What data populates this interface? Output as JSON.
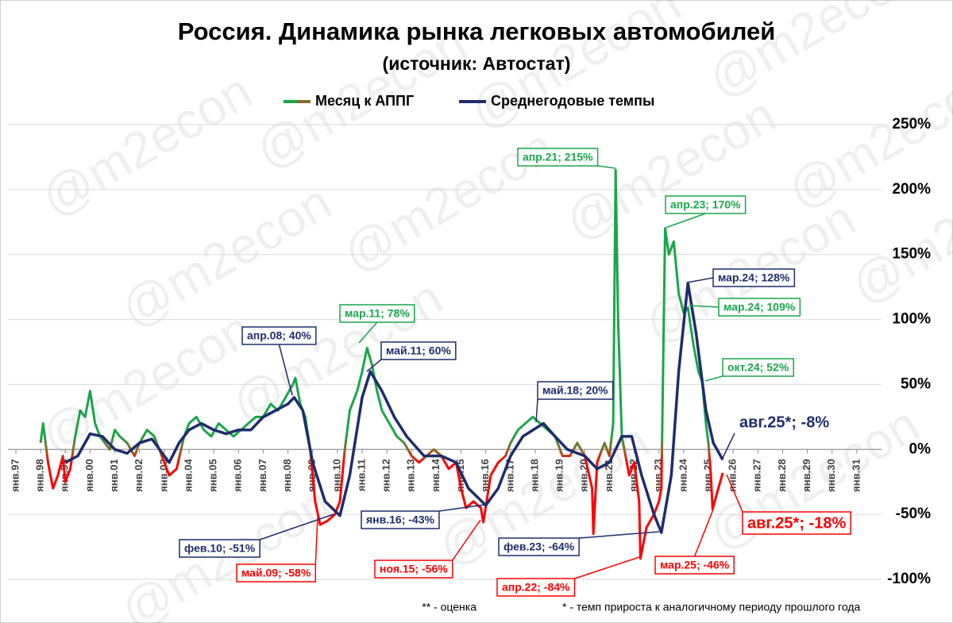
{
  "chart_data": {
    "type": "line",
    "title": "Россия. Динамика рынка легковых автомобилей",
    "subtitle": "(источник: Автостат)",
    "watermark": "@m2econ",
    "xlim": [
      1997,
      2032
    ],
    "xticks": [
      {
        "value": 1997,
        "label": "янв.97"
      },
      {
        "value": 1998,
        "label": "янв.98"
      },
      {
        "value": 1999,
        "label": "янв.99"
      },
      {
        "value": 2000,
        "label": "янв.00"
      },
      {
        "value": 2001,
        "label": "янв.01"
      },
      {
        "value": 2002,
        "label": "янв.02"
      },
      {
        "value": 2003,
        "label": "янв.03"
      },
      {
        "value": 2004,
        "label": "янв.04"
      },
      {
        "value": 2005,
        "label": "янв.05"
      },
      {
        "value": 2006,
        "label": "янв.06"
      },
      {
        "value": 2007,
        "label": "янв.07"
      },
      {
        "value": 2008,
        "label": "янв.08"
      },
      {
        "value": 2009,
        "label": "янв.09"
      },
      {
        "value": 2010,
        "label": "янв.10"
      },
      {
        "value": 2011,
        "label": "янв.11"
      },
      {
        "value": 2012,
        "label": "янв.12"
      },
      {
        "value": 2013,
        "label": "янв.13"
      },
      {
        "value": 2014,
        "label": "янв.14"
      },
      {
        "value": 2015,
        "label": "янв.15"
      },
      {
        "value": 2016,
        "label": "янв.16"
      },
      {
        "value": 2017,
        "label": "янв.17"
      },
      {
        "value": 2018,
        "label": "янв.18"
      },
      {
        "value": 2019,
        "label": "янв.19"
      },
      {
        "value": 2020,
        "label": "янв.20"
      },
      {
        "value": 2021,
        "label": "янв.21"
      },
      {
        "value": 2022,
        "label": "янв.22"
      },
      {
        "value": 2023,
        "label": "янв.23"
      },
      {
        "value": 2024,
        "label": "янв.24"
      },
      {
        "value": 2025,
        "label": "янв.25"
      },
      {
        "value": 2026,
        "label": "янв.26"
      },
      {
        "value": 2027,
        "label": "янв.27"
      },
      {
        "value": 2028,
        "label": "янв.28"
      },
      {
        "value": 2029,
        "label": "янв.29"
      },
      {
        "value": 2030,
        "label": "янв.30"
      },
      {
        "value": 2031,
        "label": "янв.31"
      }
    ],
    "ylim": [
      -100,
      250
    ],
    "yticks": [
      {
        "value": 250,
        "label": "250%"
      },
      {
        "value": 200,
        "label": "200%"
      },
      {
        "value": 150,
        "label": "150%"
      },
      {
        "value": 100,
        "label": "100%"
      },
      {
        "value": 50,
        "label": "50%"
      },
      {
        "value": 0,
        "label": "0%"
      },
      {
        "value": -50,
        "label": "-50%"
      },
      {
        "value": -100,
        "label": "-100%"
      }
    ],
    "grid": true,
    "legend": "top",
    "series": [
      {
        "name": "Месяц к АППГ",
        "color": "#1aa64a",
        "negative_color": "#ff0000",
        "x": [
          1998.0,
          1998.1,
          1998.3,
          1998.5,
          1998.7,
          1998.9,
          1999.0,
          1999.2,
          1999.4,
          1999.6,
          1999.8,
          2000.0,
          2000.2,
          2000.4,
          2000.6,
          2000.8,
          2001.0,
          2001.2,
          2001.5,
          2001.8,
          2002.0,
          2002.3,
          2002.6,
          2002.9,
          2003.2,
          2003.5,
          2003.8,
          2004.0,
          2004.3,
          2004.6,
          2004.9,
          2005.2,
          2005.5,
          2005.8,
          2006.1,
          2006.4,
          2006.7,
          2007.0,
          2007.3,
          2007.6,
          2007.9,
          2008.2,
          2008.3,
          2008.5,
          2008.7,
          2008.9,
          2009.1,
          2009.3,
          2009.6,
          2009.9,
          2010.1,
          2010.3,
          2010.5,
          2010.8,
          2011.0,
          2011.2,
          2011.4,
          2011.6,
          2011.8,
          2012.1,
          2012.4,
          2012.7,
          2013.0,
          2013.3,
          2013.6,
          2013.9,
          2014.2,
          2014.5,
          2014.8,
          2015.0,
          2015.2,
          2015.5,
          2015.8,
          2015.9,
          2016.2,
          2016.5,
          2016.8,
          2017.0,
          2017.3,
          2017.6,
          2017.9,
          2018.2,
          2018.5,
          2018.8,
          2019.1,
          2019.4,
          2019.7,
          2020.0,
          2020.3,
          2020.35,
          2020.5,
          2020.8,
          2021.0,
          2021.15,
          2021.25,
          2021.35,
          2021.5,
          2021.8,
          2022.0,
          2022.2,
          2022.25,
          2022.5,
          2022.8,
          2023.0,
          2023.1,
          2023.25,
          2023.4,
          2023.6,
          2023.8,
          2024.0,
          2024.17,
          2024.4,
          2024.6,
          2024.75,
          2024.9,
          2025.0,
          2025.1,
          2025.17,
          2025.4,
          2025.58
        ],
        "values": [
          5,
          20,
          -10,
          -30,
          -20,
          -5,
          -25,
          -15,
          10,
          30,
          25,
          45,
          20,
          10,
          5,
          0,
          15,
          10,
          5,
          -5,
          5,
          15,
          10,
          -5,
          -20,
          -15,
          10,
          20,
          25,
          15,
          10,
          20,
          15,
          10,
          15,
          20,
          25,
          25,
          35,
          30,
          40,
          50,
          55,
          35,
          25,
          0,
          -40,
          -58,
          -55,
          -50,
          -40,
          0,
          30,
          45,
          60,
          78,
          65,
          45,
          30,
          20,
          10,
          5,
          -5,
          -10,
          -5,
          0,
          -5,
          -15,
          -10,
          -30,
          -45,
          -40,
          -45,
          -56,
          -20,
          -10,
          -5,
          5,
          15,
          20,
          25,
          20,
          15,
          10,
          -5,
          -5,
          5,
          -5,
          -30,
          -65,
          -10,
          5,
          -5,
          20,
          215,
          100,
          10,
          -20,
          -10,
          -40,
          -84,
          -60,
          -50,
          -40,
          -30,
          170,
          150,
          160,
          120,
          105,
          109,
          80,
          60,
          52,
          20,
          5,
          -20,
          -46,
          -30,
          -18
        ]
      },
      {
        "name": "Среднегодовые темпы",
        "color": "#1f2d6b",
        "x": [
          1999.0,
          1999.5,
          2000.0,
          2000.5,
          2001.0,
          2001.5,
          2002.0,
          2002.5,
          2003.0,
          2003.2,
          2003.6,
          2004.0,
          2004.5,
          2005.0,
          2005.5,
          2006.0,
          2006.5,
          2007.0,
          2007.5,
          2008.0,
          2008.25,
          2008.6,
          2009.0,
          2009.5,
          2010.1,
          2010.5,
          2011.0,
          2011.33,
          2011.8,
          2012.3,
          2012.8,
          2013.5,
          2014.2,
          2014.8,
          2015.3,
          2016.0,
          2016.5,
          2017.0,
          2017.5,
          2018.33,
          2018.8,
          2019.3,
          2020.0,
          2020.5,
          2021.0,
          2021.5,
          2021.9,
          2022.3,
          2022.8,
          2023.1,
          2023.5,
          2023.8,
          2024.17,
          2024.5,
          2024.9,
          2025.2,
          2025.58
        ],
        "values": [
          -10,
          -5,
          12,
          10,
          0,
          -3,
          5,
          8,
          -5,
          -10,
          5,
          15,
          20,
          15,
          12,
          15,
          15,
          25,
          30,
          35,
          40,
          30,
          -10,
          -40,
          -51,
          -20,
          40,
          60,
          45,
          25,
          10,
          -5,
          -5,
          -10,
          -30,
          -43,
          -30,
          -5,
          10,
          20,
          10,
          0,
          -5,
          -15,
          -10,
          10,
          10,
          -20,
          -50,
          -64,
          -20,
          60,
          128,
          90,
          30,
          5,
          -8
        ]
      }
    ],
    "annotations": [
      {
        "text": "апр.21; 215%",
        "series": 0
      },
      {
        "text": "апр.23; 170%",
        "series": 0
      },
      {
        "text": "мар.24; 128%",
        "series": 1
      },
      {
        "text": "мар.24; 109%",
        "series": 0
      },
      {
        "text": "окт.24; 52%",
        "series": 0
      },
      {
        "text": "мар.11; 78%",
        "series": 0
      },
      {
        "text": "май.11; 60%",
        "series": 1
      },
      {
        "text": "апр.08; 40%",
        "series": 1
      },
      {
        "text": "май.18; 20%",
        "series": 1
      },
      {
        "text": "авг.25*; -8%",
        "series": 1
      },
      {
        "text": "фев.10; -51%",
        "series": 1
      },
      {
        "text": "май.09; -58%",
        "series": 0
      },
      {
        "text": "янв.16; -43%",
        "series": 1
      },
      {
        "text": "ноя.15; -56%",
        "series": 0
      },
      {
        "text": "фев.23; -64%",
        "series": 1
      },
      {
        "text": "апр.22; -84%",
        "series": 0
      },
      {
        "text": "мар.25; -46%",
        "series": 0
      },
      {
        "text": "авг.25*; -18%",
        "series": 0
      }
    ],
    "footnotes": [
      "** - оценка",
      "* - темп прироста к аналогичному периоду прошлого года"
    ]
  }
}
